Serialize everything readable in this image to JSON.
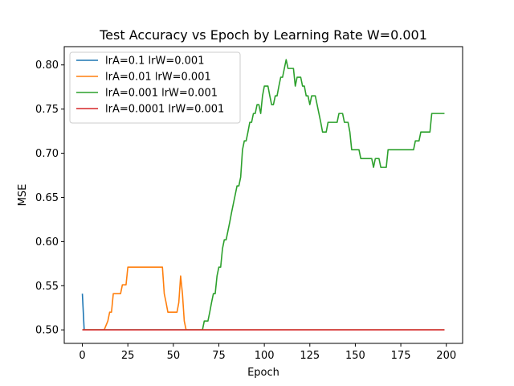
{
  "chart_data": {
    "type": "line",
    "title": "Test Accuracy vs Epoch by Learning Rate W=0.001",
    "xlabel": "Epoch",
    "ylabel": "MSE",
    "xlim": [
      -9.95,
      208.95
    ],
    "ylim": [
      0.4847,
      0.8207
    ],
    "xticks": [
      0,
      25,
      50,
      75,
      100,
      125,
      150,
      175,
      200
    ],
    "yticks": [
      0.5,
      0.55,
      0.6,
      0.65,
      0.7,
      0.75,
      0.8
    ],
    "ytick_labels": [
      "0.50",
      "0.55",
      "0.60",
      "0.65",
      "0.70",
      "0.75",
      "0.80"
    ],
    "grid": false,
    "legend_position": "upper-left",
    "series": [
      {
        "name": "lrA=0.1 lrW=0.001",
        "color": "#1f77b4",
        "points": [
          [
            0,
            0.541
          ],
          [
            1,
            0.5
          ],
          [
            199,
            0.5
          ]
        ]
      },
      {
        "name": "lrA=0.01 lrW=0.001",
        "color": "#ff7f0e",
        "points": [
          [
            0,
            0.5
          ],
          [
            12,
            0.5
          ],
          [
            14,
            0.51
          ],
          [
            15,
            0.52
          ],
          [
            16,
            0.52
          ],
          [
            17,
            0.541
          ],
          [
            21,
            0.541
          ],
          [
            22,
            0.551
          ],
          [
            24,
            0.551
          ],
          [
            25,
            0.571
          ],
          [
            44,
            0.571
          ],
          [
            45,
            0.541
          ],
          [
            46,
            0.531
          ],
          [
            47,
            0.52
          ],
          [
            52,
            0.52
          ],
          [
            53,
            0.531
          ],
          [
            54,
            0.561
          ],
          [
            55,
            0.541
          ],
          [
            56,
            0.51
          ],
          [
            57,
            0.5
          ],
          [
            199,
            0.5
          ]
        ]
      },
      {
        "name": "lrA=0.001 lrW=0.001",
        "color": "#2ca02c",
        "points": [
          [
            0,
            0.5
          ],
          [
            66,
            0.5
          ],
          [
            67,
            0.51
          ],
          [
            69,
            0.51
          ],
          [
            70,
            0.52
          ],
          [
            71,
            0.531
          ],
          [
            72,
            0.541
          ],
          [
            73,
            0.541
          ],
          [
            74,
            0.561
          ],
          [
            75,
            0.571
          ],
          [
            76,
            0.571
          ],
          [
            77,
            0.592
          ],
          [
            78,
            0.602
          ],
          [
            79,
            0.602
          ],
          [
            80,
            0.612
          ],
          [
            81,
            0.622
          ],
          [
            82,
            0.633
          ],
          [
            83,
            0.643
          ],
          [
            84,
            0.653
          ],
          [
            85,
            0.663
          ],
          [
            86,
            0.663
          ],
          [
            87,
            0.673
          ],
          [
            88,
            0.704
          ],
          [
            89,
            0.714
          ],
          [
            90,
            0.714
          ],
          [
            91,
            0.724
          ],
          [
            92,
            0.735
          ],
          [
            93,
            0.735
          ],
          [
            94,
            0.745
          ],
          [
            95,
            0.745
          ],
          [
            96,
            0.755
          ],
          [
            97,
            0.755
          ],
          [
            98,
            0.745
          ],
          [
            99,
            0.765
          ],
          [
            100,
            0.776
          ],
          [
            101,
            0.776
          ],
          [
            102,
            0.776
          ],
          [
            103,
            0.765
          ],
          [
            104,
            0.755
          ],
          [
            105,
            0.755
          ],
          [
            106,
            0.765
          ],
          [
            107,
            0.765
          ],
          [
            108,
            0.776
          ],
          [
            109,
            0.786
          ],
          [
            110,
            0.786
          ],
          [
            111,
            0.796
          ],
          [
            112,
            0.806
          ],
          [
            113,
            0.796
          ],
          [
            116,
            0.796
          ],
          [
            117,
            0.776
          ],
          [
            118,
            0.786
          ],
          [
            120,
            0.786
          ],
          [
            121,
            0.776
          ],
          [
            122,
            0.776
          ],
          [
            123,
            0.765
          ],
          [
            124,
            0.765
          ],
          [
            125,
            0.755
          ],
          [
            126,
            0.765
          ],
          [
            128,
            0.765
          ],
          [
            129,
            0.755
          ],
          [
            130,
            0.745
          ],
          [
            131,
            0.735
          ],
          [
            132,
            0.724
          ],
          [
            134,
            0.724
          ],
          [
            135,
            0.735
          ],
          [
            140,
            0.735
          ],
          [
            141,
            0.745
          ],
          [
            143,
            0.745
          ],
          [
            144,
            0.735
          ],
          [
            146,
            0.735
          ],
          [
            147,
            0.724
          ],
          [
            148,
            0.704
          ],
          [
            152,
            0.704
          ],
          [
            153,
            0.694
          ],
          [
            159,
            0.694
          ],
          [
            160,
            0.684
          ],
          [
            161,
            0.694
          ],
          [
            163,
            0.694
          ],
          [
            164,
            0.684
          ],
          [
            167,
            0.684
          ],
          [
            168,
            0.704
          ],
          [
            182,
            0.704
          ],
          [
            183,
            0.714
          ],
          [
            185,
            0.714
          ],
          [
            186,
            0.724
          ],
          [
            191,
            0.724
          ],
          [
            192,
            0.745
          ],
          [
            199,
            0.745
          ]
        ]
      },
      {
        "name": "lrA=0.0001 lrW=0.001",
        "color": "#d62728",
        "points": [
          [
            0,
            0.5
          ],
          [
            199,
            0.5
          ]
        ]
      }
    ]
  }
}
